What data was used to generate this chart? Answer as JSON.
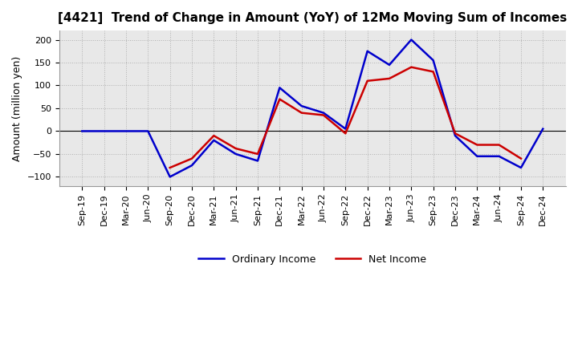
{
  "title": "[4421]  Trend of Change in Amount (YoY) of 12Mo Moving Sum of Incomes",
  "ylabel": "Amount (million yen)",
  "background_color": "#ffffff",
  "grid_color": "#b0b0b0",
  "plot_bg_color": "#e8e8e8",
  "x_labels": [
    "Sep-19",
    "Dec-19",
    "Mar-20",
    "Jun-20",
    "Sep-20",
    "Dec-20",
    "Mar-21",
    "Jun-21",
    "Sep-21",
    "Dec-21",
    "Mar-22",
    "Jun-22",
    "Sep-22",
    "Dec-22",
    "Mar-23",
    "Jun-23",
    "Sep-23",
    "Dec-23",
    "Mar-24",
    "Jun-24",
    "Sep-24",
    "Dec-24"
  ],
  "ordinary_income": [
    0,
    0,
    0,
    0,
    -100,
    -75,
    -20,
    -50,
    -65,
    95,
    55,
    40,
    5,
    175,
    145,
    200,
    155,
    -10,
    -55,
    -55,
    -80,
    5
  ],
  "net_income": [
    null,
    null,
    null,
    null,
    -80,
    -60,
    -10,
    -38,
    -50,
    70,
    40,
    35,
    -5,
    110,
    115,
    140,
    130,
    -5,
    -30,
    -30,
    -60,
    null
  ],
  "ordinary_color": "#0000cc",
  "net_color": "#cc0000",
  "ylim": [
    -120,
    220
  ],
  "yticks": [
    -100,
    -50,
    0,
    50,
    100,
    150,
    200
  ],
  "line_width": 1.8,
  "tick_fontsize": 8,
  "title_fontsize": 11,
  "ylabel_fontsize": 9,
  "legend_fontsize": 9
}
